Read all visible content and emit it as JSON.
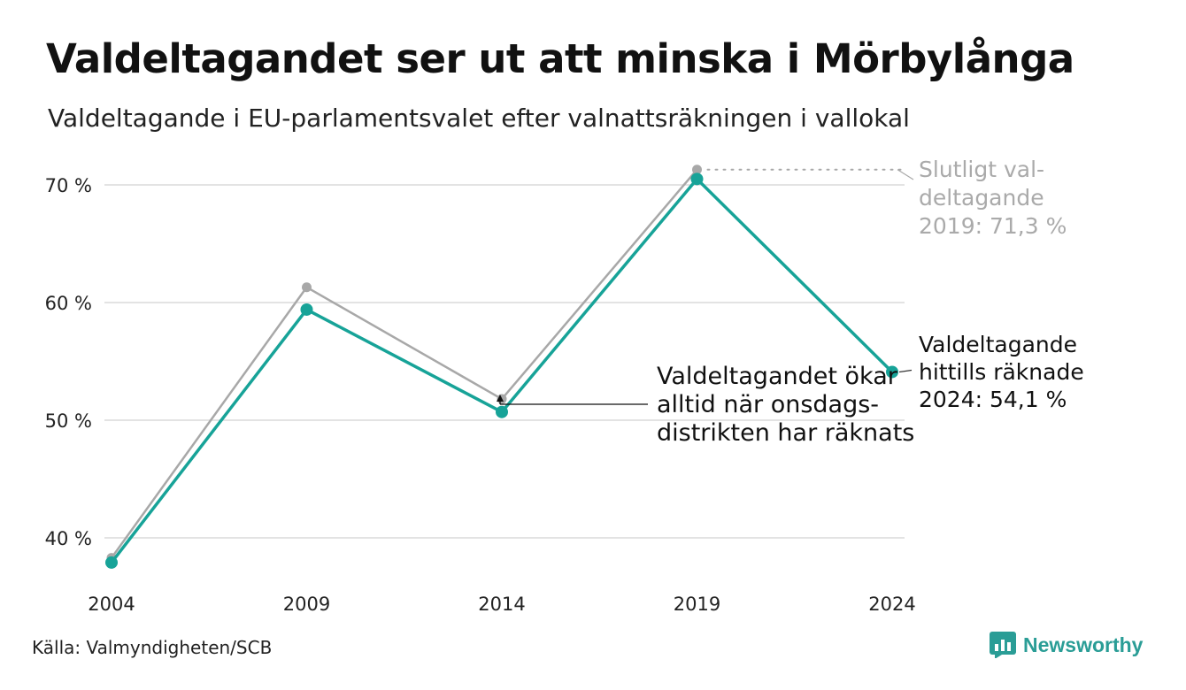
{
  "title": "Valdeltagandet ser ut att minska i Mörbylånga",
  "subtitle": "Valdeltagande i EU-parlamentsvalet efter valnattsräkningen i vallokal",
  "source": "Källa: Valmyndigheten/SCB",
  "brand": "Newsworthy",
  "colors": {
    "final": "#a8a8a8",
    "election_night": "#17a398",
    "grid": "#e3e3e3",
    "brand": "#2a9d96"
  },
  "chart_data": {
    "type": "line",
    "x": [
      "2004",
      "2009",
      "2014",
      "2019",
      "2024"
    ],
    "ylim": [
      37,
      73
    ],
    "yticks": [
      "40 %",
      "50 %",
      "60 %",
      "70 %"
    ],
    "ytick_values": [
      40,
      50,
      60,
      70
    ],
    "grid": "horizontal",
    "series": [
      {
        "key": "final",
        "values": [
          38.3,
          61.3,
          51.8,
          71.3,
          null
        ]
      },
      {
        "key": "election_night",
        "values": [
          37.9,
          59.4,
          50.7,
          70.5,
          54.1
        ]
      }
    ],
    "annotations": {
      "final_2019": [
        "Slutligt val-",
        "deltagande",
        "2019: 71,3 %"
      ],
      "current_2024": [
        "Valdeltagande",
        "hittills räknade",
        "2024: 54,1 %"
      ],
      "note_2014": [
        "Valdeltagandet ökar",
        "alltid när onsdags-",
        "distrikten har räknats"
      ]
    }
  }
}
